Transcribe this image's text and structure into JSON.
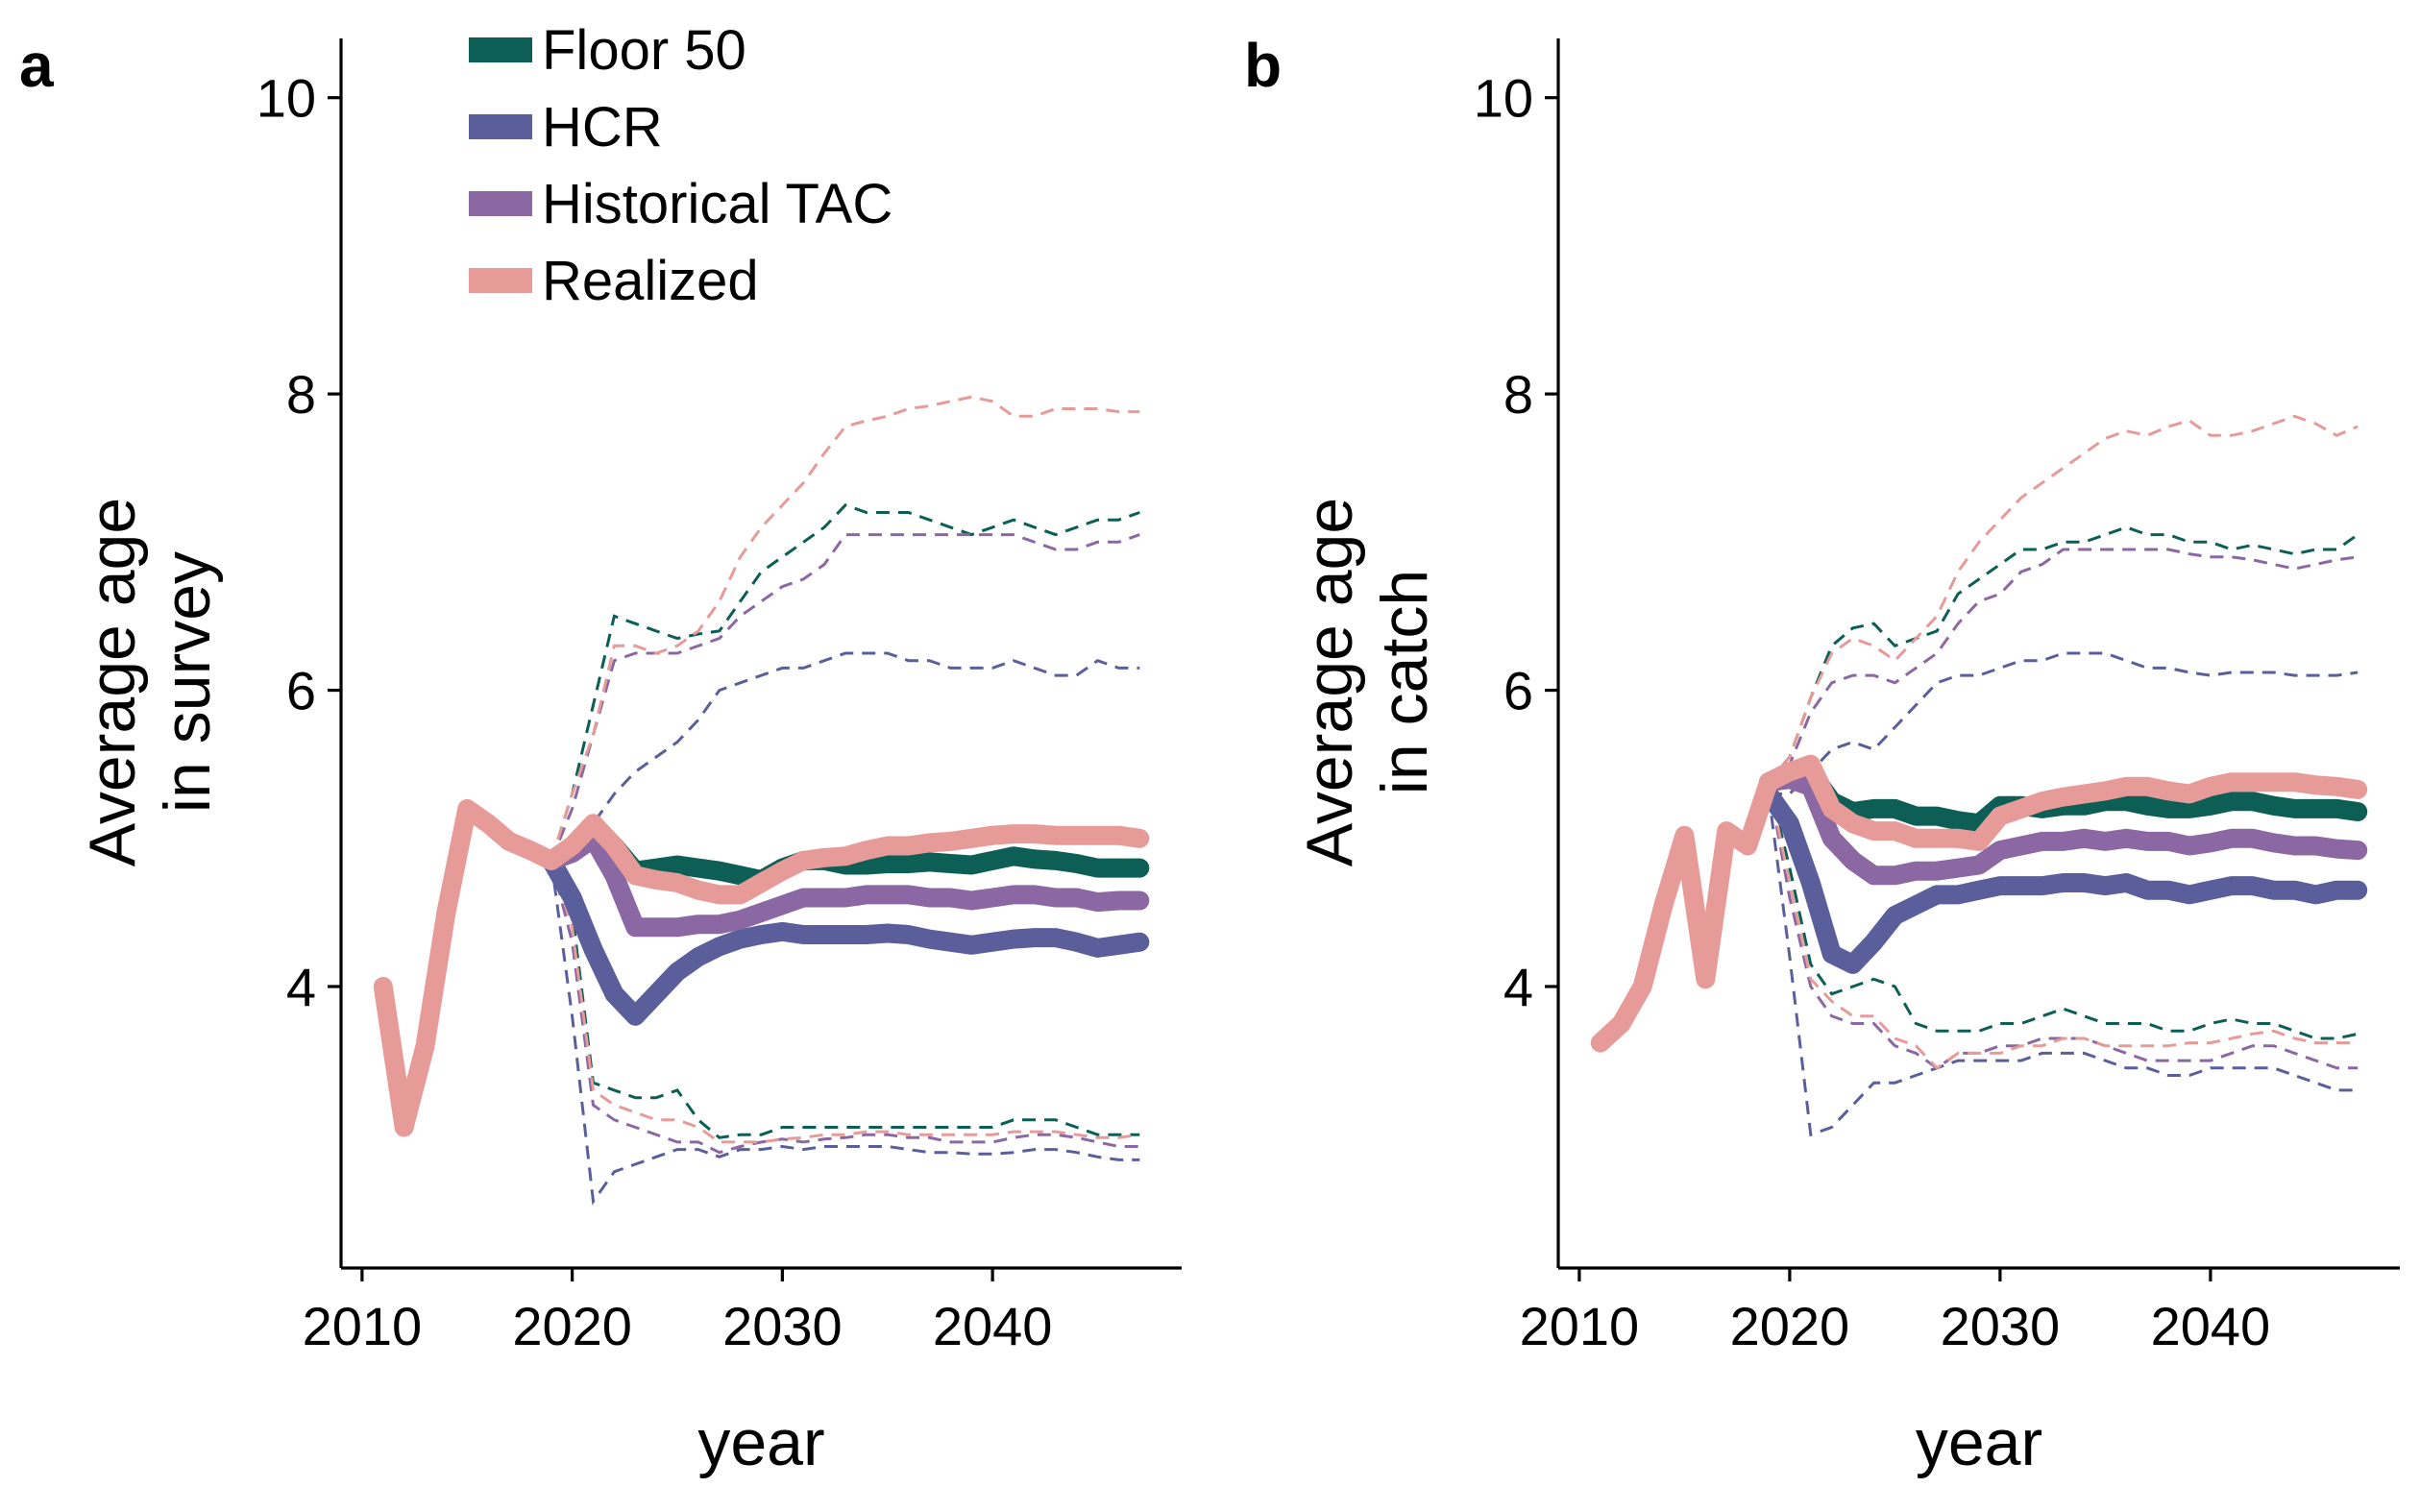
{
  "legend": {
    "placement": "top-left of panel a",
    "entries": [
      {
        "name": "Floor 50",
        "color": "#0d5e55"
      },
      {
        "name": "HCR",
        "color": "#5a5f9b"
      },
      {
        "name": "Historical TAC",
        "color": "#8b68a3"
      },
      {
        "name": "Realized",
        "color": "#e69b98"
      }
    ]
  },
  "chart_data": [
    {
      "type": "line",
      "panel_label": "a",
      "title": "",
      "xlabel": "year",
      "ylabel_lines": [
        "Average age",
        "in survey"
      ],
      "xlim": [
        2009,
        2049
      ],
      "ylim": [
        2.1,
        10.4
      ],
      "xticks": [
        2010,
        2020,
        2030,
        2040
      ],
      "yticks": [
        4,
        6,
        8,
        10
      ],
      "grid": false,
      "history": {
        "name": "Realized",
        "x": [
          2011,
          2012,
          2013,
          2014,
          2015,
          2016,
          2017,
          2018,
          2019
        ],
        "y": [
          4.0,
          3.05,
          3.6,
          4.5,
          5.2,
          5.1,
          4.98,
          4.92,
          4.85
        ]
      },
      "series": [
        {
          "name": "Floor 50",
          "x": [
            2019,
            2020,
            2021,
            2022,
            2023,
            2024,
            2025,
            2026,
            2027,
            2028,
            2029,
            2030,
            2031,
            2032,
            2033,
            2034,
            2035,
            2036,
            2037,
            2038,
            2039,
            2040,
            2041,
            2042,
            2043,
            2044,
            2045,
            2046,
            2047
          ],
          "y": [
            4.85,
            4.95,
            5.05,
            4.95,
            4.78,
            4.8,
            4.82,
            4.8,
            4.78,
            4.75,
            4.72,
            4.8,
            4.85,
            4.85,
            4.82,
            4.82,
            4.83,
            4.83,
            4.84,
            4.83,
            4.82,
            4.85,
            4.88,
            4.86,
            4.85,
            4.83,
            4.8,
            4.8,
            4.8
          ],
          "lower": [
            4.85,
            4.5,
            3.35,
            3.3,
            3.25,
            3.25,
            3.3,
            3.1,
            2.98,
            3.0,
            3.0,
            3.05,
            3.05,
            3.05,
            3.05,
            3.05,
            3.05,
            3.05,
            3.05,
            3.05,
            3.05,
            3.05,
            3.1,
            3.1,
            3.1,
            3.05,
            3.0,
            3.0,
            3.0
          ],
          "upper": [
            4.85,
            5.3,
            5.9,
            6.5,
            6.45,
            6.4,
            6.35,
            6.38,
            6.4,
            6.6,
            6.8,
            6.9,
            7.0,
            7.1,
            7.25,
            7.2,
            7.2,
            7.2,
            7.15,
            7.1,
            7.05,
            7.1,
            7.15,
            7.1,
            7.05,
            7.1,
            7.15,
            7.15,
            7.2
          ]
        },
        {
          "name": "HCR",
          "x": [
            2019,
            2020,
            2021,
            2022,
            2023,
            2024,
            2025,
            2026,
            2027,
            2028,
            2029,
            2030,
            2031,
            2032,
            2033,
            2034,
            2035,
            2036,
            2037,
            2038,
            2039,
            2040,
            2041,
            2042,
            2043,
            2044,
            2045,
            2046,
            2047
          ],
          "y": [
            4.85,
            4.6,
            4.25,
            3.95,
            3.8,
            3.95,
            4.1,
            4.2,
            4.27,
            4.32,
            4.35,
            4.37,
            4.35,
            4.35,
            4.35,
            4.35,
            4.36,
            4.35,
            4.32,
            4.3,
            4.28,
            4.3,
            4.32,
            4.33,
            4.33,
            4.3,
            4.26,
            4.28,
            4.3
          ],
          "lower": [
            4.85,
            3.8,
            2.55,
            2.75,
            2.8,
            2.85,
            2.9,
            2.9,
            2.85,
            2.9,
            2.9,
            2.92,
            2.9,
            2.92,
            2.92,
            2.92,
            2.92,
            2.9,
            2.88,
            2.88,
            2.87,
            2.87,
            2.88,
            2.9,
            2.9,
            2.88,
            2.85,
            2.83,
            2.83
          ],
          "upper": [
            4.85,
            4.85,
            5.1,
            5.3,
            5.45,
            5.55,
            5.65,
            5.8,
            6.0,
            6.05,
            6.1,
            6.15,
            6.15,
            6.2,
            6.25,
            6.25,
            6.25,
            6.2,
            6.2,
            6.15,
            6.15,
            6.15,
            6.2,
            6.15,
            6.1,
            6.1,
            6.2,
            6.15,
            6.15
          ]
        },
        {
          "name": "Historical TAC",
          "x": [
            2019,
            2020,
            2021,
            2022,
            2023,
            2024,
            2025,
            2026,
            2027,
            2028,
            2029,
            2030,
            2031,
            2032,
            2033,
            2034,
            2035,
            2036,
            2037,
            2038,
            2039,
            2040,
            2041,
            2042,
            2043,
            2044,
            2045,
            2046,
            2047
          ],
          "y": [
            4.85,
            4.9,
            5.0,
            4.75,
            4.4,
            4.4,
            4.4,
            4.42,
            4.42,
            4.45,
            4.5,
            4.55,
            4.6,
            4.6,
            4.6,
            4.62,
            4.62,
            4.62,
            4.6,
            4.6,
            4.58,
            4.6,
            4.62,
            4.62,
            4.6,
            4.6,
            4.57,
            4.58,
            4.58
          ],
          "lower": [
            4.85,
            4.3,
            3.2,
            3.1,
            3.05,
            3.0,
            2.95,
            2.95,
            2.88,
            2.92,
            2.95,
            2.97,
            2.95,
            2.97,
            2.98,
            3.0,
            3.0,
            2.98,
            2.98,
            2.95,
            2.95,
            2.95,
            2.98,
            3.0,
            3.0,
            2.98,
            2.95,
            2.92,
            2.92
          ],
          "upper": [
            4.85,
            5.2,
            5.7,
            6.2,
            6.25,
            6.25,
            6.25,
            6.3,
            6.35,
            6.5,
            6.6,
            6.7,
            6.75,
            6.85,
            7.05,
            7.05,
            7.05,
            7.05,
            7.05,
            7.05,
            7.05,
            7.05,
            7.05,
            7.0,
            6.95,
            6.95,
            7.0,
            7.0,
            7.05
          ]
        },
        {
          "name": "Realized",
          "x": [
            2019,
            2020,
            2021,
            2022,
            2023,
            2024,
            2025,
            2026,
            2027,
            2028,
            2029,
            2030,
            2031,
            2032,
            2033,
            2034,
            2035,
            2036,
            2037,
            2038,
            2039,
            2040,
            2041,
            2042,
            2043,
            2044,
            2045,
            2046,
            2047
          ],
          "y": [
            4.85,
            4.95,
            5.1,
            4.95,
            4.75,
            4.72,
            4.7,
            4.65,
            4.62,
            4.62,
            4.7,
            4.78,
            4.85,
            4.87,
            4.88,
            4.92,
            4.95,
            4.95,
            4.97,
            4.98,
            5.0,
            5.02,
            5.03,
            5.03,
            5.02,
            5.02,
            5.02,
            5.02,
            5.0
          ],
          "lower": [
            4.85,
            4.4,
            3.3,
            3.2,
            3.15,
            3.1,
            3.1,
            3.05,
            2.95,
            2.95,
            2.95,
            2.97,
            2.98,
            3.0,
            3.0,
            3.02,
            3.02,
            3.0,
            3.0,
            3.0,
            3.0,
            3.0,
            3.02,
            3.02,
            3.02,
            3.0,
            2.98,
            2.98,
            3.0
          ],
          "upper": [
            4.85,
            5.3,
            5.7,
            6.3,
            6.3,
            6.25,
            6.3,
            6.4,
            6.6,
            6.9,
            7.1,
            7.25,
            7.4,
            7.6,
            7.78,
            7.82,
            7.85,
            7.9,
            7.92,
            7.95,
            7.98,
            7.95,
            7.85,
            7.85,
            7.9,
            7.9,
            7.9,
            7.88,
            7.88
          ]
        }
      ]
    },
    {
      "type": "line",
      "panel_label": "b",
      "title": "",
      "xlabel": "year",
      "ylabel_lines": [
        "Average age",
        "in catch"
      ],
      "xlim": [
        2009,
        2049
      ],
      "ylim": [
        2.1,
        10.4
      ],
      "xticks": [
        2010,
        2020,
        2030,
        2040
      ],
      "yticks": [
        4,
        6,
        8,
        10
      ],
      "grid": false,
      "history": {
        "name": "Realized",
        "x": [
          2011,
          2012,
          2013,
          2014,
          2015,
          2016,
          2017,
          2018,
          2019
        ],
        "y": [
          3.62,
          3.75,
          4.0,
          4.55,
          5.02,
          4.05,
          5.05,
          4.95,
          5.38
        ]
      },
      "series": [
        {
          "name": "Floor 50",
          "x": [
            2019,
            2020,
            2021,
            2022,
            2023,
            2024,
            2025,
            2026,
            2027,
            2028,
            2029,
            2030,
            2031,
            2032,
            2033,
            2034,
            2035,
            2036,
            2037,
            2038,
            2039,
            2040,
            2041,
            2042,
            2043,
            2044,
            2045,
            2046,
            2047
          ],
          "y": [
            5.38,
            5.45,
            5.45,
            5.25,
            5.18,
            5.2,
            5.2,
            5.15,
            5.15,
            5.12,
            5.1,
            5.22,
            5.22,
            5.2,
            5.22,
            5.22,
            5.25,
            5.25,
            5.22,
            5.2,
            5.2,
            5.22,
            5.25,
            5.25,
            5.22,
            5.2,
            5.2,
            5.2,
            5.18
          ],
          "lower": [
            5.38,
            4.8,
            4.15,
            3.95,
            4.0,
            4.05,
            4.0,
            3.75,
            3.7,
            3.7,
            3.7,
            3.75,
            3.75,
            3.8,
            3.85,
            3.8,
            3.75,
            3.75,
            3.75,
            3.7,
            3.7,
            3.75,
            3.78,
            3.75,
            3.75,
            3.7,
            3.65,
            3.65,
            3.68
          ],
          "upper": [
            5.38,
            5.55,
            5.95,
            6.3,
            6.42,
            6.45,
            6.3,
            6.35,
            6.4,
            6.65,
            6.75,
            6.85,
            6.95,
            6.95,
            7.0,
            7.0,
            7.05,
            7.1,
            7.05,
            7.05,
            7.0,
            7.0,
            6.95,
            6.98,
            6.95,
            6.92,
            6.95,
            6.95,
            7.05
          ]
        },
        {
          "name": "HCR",
          "x": [
            2019,
            2020,
            2021,
            2022,
            2023,
            2024,
            2025,
            2026,
            2027,
            2028,
            2029,
            2030,
            2031,
            2032,
            2033,
            2034,
            2035,
            2036,
            2037,
            2038,
            2039,
            2040,
            2041,
            2042,
            2043,
            2044,
            2045,
            2046,
            2047
          ],
          "y": [
            5.3,
            5.1,
            4.7,
            4.22,
            4.15,
            4.3,
            4.48,
            4.55,
            4.62,
            4.62,
            4.65,
            4.68,
            4.68,
            4.68,
            4.7,
            4.7,
            4.68,
            4.7,
            4.65,
            4.65,
            4.62,
            4.65,
            4.68,
            4.68,
            4.65,
            4.65,
            4.62,
            4.65,
            4.65
          ],
          "lower": [
            5.3,
            4.2,
            3.0,
            3.05,
            3.2,
            3.35,
            3.35,
            3.4,
            3.45,
            3.5,
            3.5,
            3.5,
            3.5,
            3.55,
            3.55,
            3.55,
            3.5,
            3.45,
            3.45,
            3.4,
            3.4,
            3.45,
            3.45,
            3.45,
            3.45,
            3.4,
            3.35,
            3.3,
            3.3
          ],
          "upper": [
            5.3,
            5.3,
            5.45,
            5.6,
            5.65,
            5.6,
            5.75,
            5.9,
            6.05,
            6.1,
            6.1,
            6.15,
            6.2,
            6.2,
            6.25,
            6.25,
            6.25,
            6.2,
            6.15,
            6.15,
            6.12,
            6.1,
            6.12,
            6.12,
            6.12,
            6.1,
            6.1,
            6.1,
            6.12
          ]
        },
        {
          "name": "Historical TAC",
          "x": [
            2019,
            2020,
            2021,
            2022,
            2023,
            2024,
            2025,
            2026,
            2027,
            2028,
            2029,
            2030,
            2031,
            2032,
            2033,
            2034,
            2035,
            2036,
            2037,
            2038,
            2039,
            2040,
            2041,
            2042,
            2043,
            2044,
            2045,
            2046,
            2047
          ],
          "y": [
            5.38,
            5.4,
            5.35,
            5.0,
            4.85,
            4.75,
            4.75,
            4.78,
            4.78,
            4.8,
            4.82,
            4.92,
            4.95,
            4.98,
            4.98,
            5.0,
            4.98,
            5.0,
            4.98,
            4.98,
            4.95,
            4.97,
            5.0,
            5.0,
            4.97,
            4.95,
            4.95,
            4.93,
            4.92
          ],
          "lower": [
            5.38,
            4.6,
            4.0,
            3.8,
            3.75,
            3.75,
            3.6,
            3.55,
            3.45,
            3.55,
            3.55,
            3.6,
            3.6,
            3.65,
            3.65,
            3.65,
            3.6,
            3.55,
            3.5,
            3.5,
            3.5,
            3.5,
            3.55,
            3.6,
            3.6,
            3.55,
            3.5,
            3.45,
            3.45
          ],
          "upper": [
            5.38,
            5.5,
            5.85,
            6.05,
            6.1,
            6.1,
            6.05,
            6.15,
            6.25,
            6.45,
            6.6,
            6.65,
            6.8,
            6.85,
            6.95,
            6.95,
            6.95,
            6.95,
            6.95,
            6.95,
            6.92,
            6.9,
            6.9,
            6.88,
            6.85,
            6.82,
            6.85,
            6.88,
            6.9
          ]
        },
        {
          "name": "Realized",
          "x": [
            2019,
            2020,
            2021,
            2022,
            2023,
            2024,
            2025,
            2026,
            2027,
            2028,
            2029,
            2030,
            2031,
            2032,
            2033,
            2034,
            2035,
            2036,
            2037,
            2038,
            2039,
            2040,
            2041,
            2042,
            2043,
            2044,
            2045,
            2046,
            2047
          ],
          "y": [
            5.38,
            5.45,
            5.5,
            5.2,
            5.1,
            5.05,
            5.05,
            5.0,
            5.0,
            5.0,
            4.98,
            5.15,
            5.2,
            5.25,
            5.28,
            5.3,
            5.32,
            5.35,
            5.35,
            5.32,
            5.3,
            5.35,
            5.38,
            5.38,
            5.38,
            5.38,
            5.36,
            5.35,
            5.33
          ],
          "lower": [
            5.38,
            4.7,
            4.05,
            3.9,
            3.8,
            3.8,
            3.65,
            3.6,
            3.45,
            3.55,
            3.55,
            3.55,
            3.6,
            3.6,
            3.65,
            3.65,
            3.6,
            3.6,
            3.6,
            3.6,
            3.62,
            3.62,
            3.65,
            3.68,
            3.7,
            3.65,
            3.62,
            3.62,
            3.62
          ],
          "upper": [
            5.38,
            5.55,
            5.95,
            6.25,
            6.35,
            6.3,
            6.2,
            6.35,
            6.5,
            6.8,
            7.0,
            7.15,
            7.3,
            7.4,
            7.5,
            7.6,
            7.7,
            7.75,
            7.72,
            7.78,
            7.82,
            7.72,
            7.72,
            7.75,
            7.8,
            7.85,
            7.8,
            7.72,
            7.78
          ]
        }
      ]
    }
  ]
}
